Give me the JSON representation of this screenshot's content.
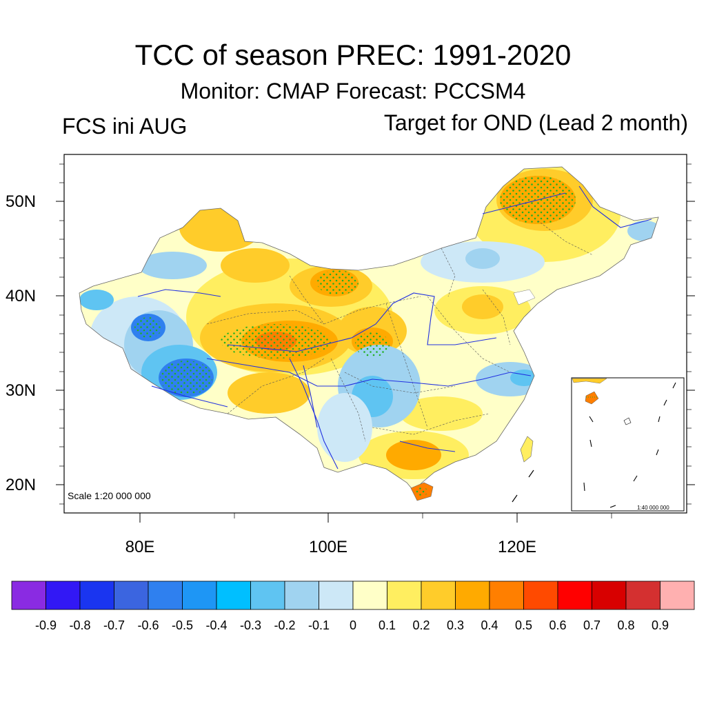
{
  "header": {
    "title": "TCC of season PREC: 1991-2020",
    "subtitle": "Monitor: CMAP   Forecast: PCCSM4",
    "left_label": "FCS ini AUG",
    "right_label": "Target for OND (Lead 2 month)"
  },
  "axes": {
    "y_ticks": [
      "50N",
      "40N",
      "30N",
      "20N"
    ],
    "x_ticks": [
      "80E",
      "100E",
      "120E"
    ]
  },
  "map": {
    "scale_text": "Scale 1:20 000 000",
    "inset_scale_text": "1:40 000 000"
  },
  "colorbar": {
    "labels": [
      "-0.9",
      "-0.8",
      "-0.7",
      "-0.6",
      "-0.5",
      "-0.4",
      "-0.3",
      "-0.2",
      "-0.1",
      "0",
      "0.1",
      "0.2",
      "0.3",
      "0.4",
      "0.5",
      "0.6",
      "0.7",
      "0.8",
      "0.9"
    ],
    "colors": [
      "#8a2be2",
      "#3218f5",
      "#1a35f0",
      "#3b65e0",
      "#2f80ef",
      "#1e96f5",
      "#00bfff",
      "#5fc4f2",
      "#a0d3f0",
      "#cde8f7",
      "#ffffc8",
      "#ffee60",
      "#ffcc2a",
      "#ffaa00",
      "#ff7f00",
      "#ff4a00",
      "#ff0000",
      "#d80000",
      "#d43030",
      "#ffb0b0"
    ]
  }
}
